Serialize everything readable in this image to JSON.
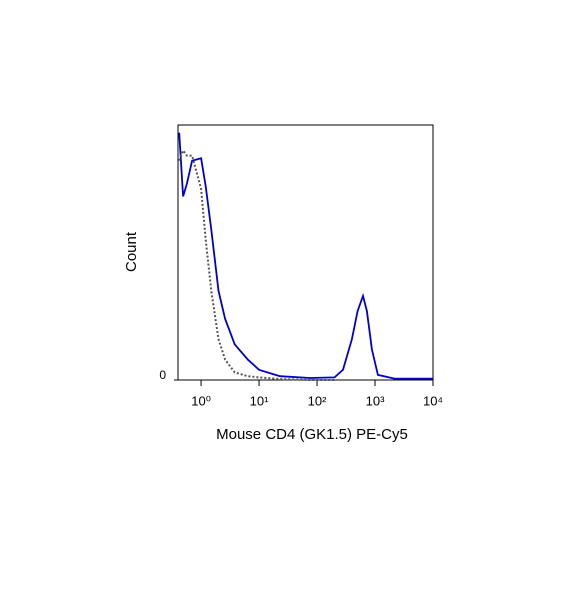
{
  "chart_data": {
    "type": "line",
    "x_label": "Mouse CD4 (GK1.5) PE-Cy5",
    "y_label": "Count",
    "x_scale": "log",
    "xlim": [
      0.4,
      10000
    ],
    "xticks": [
      {
        "value": 1,
        "label": "10⁰"
      },
      {
        "value": 10,
        "label": "10¹"
      },
      {
        "value": 100,
        "label": "10²"
      },
      {
        "value": 1000,
        "label": "10³"
      },
      {
        "value": 10000,
        "label": "10⁴"
      }
    ],
    "ylim": [
      0,
      100
    ],
    "yticks": [
      0
    ],
    "x": [
      0.42,
      0.49,
      0.57,
      0.7,
      1,
      1.2,
      1.5,
      2,
      2.6,
      3.8,
      6.4,
      10,
      23,
      76,
      200,
      280,
      400,
      500,
      620,
      725,
      885,
      1120,
      2200,
      10000
    ],
    "series": [
      {
        "color": "#0000cc",
        "dash": "solid",
        "values": [
          97,
          72,
          77,
          86,
          87,
          76,
          59,
          35,
          24,
          14,
          8,
          4,
          1.5,
          0.8,
          1,
          4,
          16,
          27,
          33,
          27,
          12,
          2,
          0.5,
          0.5
        ]
      },
      {
        "color": "#555555",
        "dash": "dotted",
        "values": [
          86,
          90,
          88,
          88,
          75,
          55,
          35,
          16,
          8,
          3,
          1.5,
          1,
          0.4,
          0,
          0,
          null,
          null,
          null,
          null,
          null,
          null,
          null,
          null,
          null
        ]
      }
    ]
  }
}
